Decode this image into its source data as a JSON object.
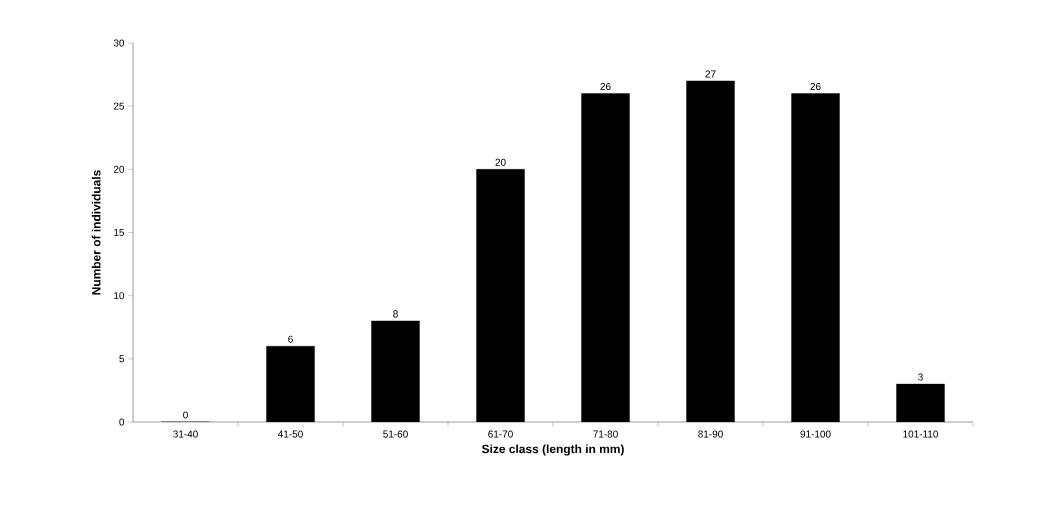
{
  "chart_data": {
    "type": "bar",
    "xlabel": "Size class (length in mm)",
    "ylabel": "Number of individuals",
    "categories": [
      "31-40",
      "41-50",
      "51-60",
      "61-70",
      "71-80",
      "81-90",
      "91-100",
      "101-110"
    ],
    "values": [
      0,
      6,
      8,
      20,
      26,
      27,
      26,
      3
    ],
    "color": "#000000",
    "ylim": [
      0,
      30
    ],
    "yticks": [
      0,
      5,
      10,
      15,
      20,
      25,
      30
    ],
    "data_labels": true,
    "grid": false
  }
}
